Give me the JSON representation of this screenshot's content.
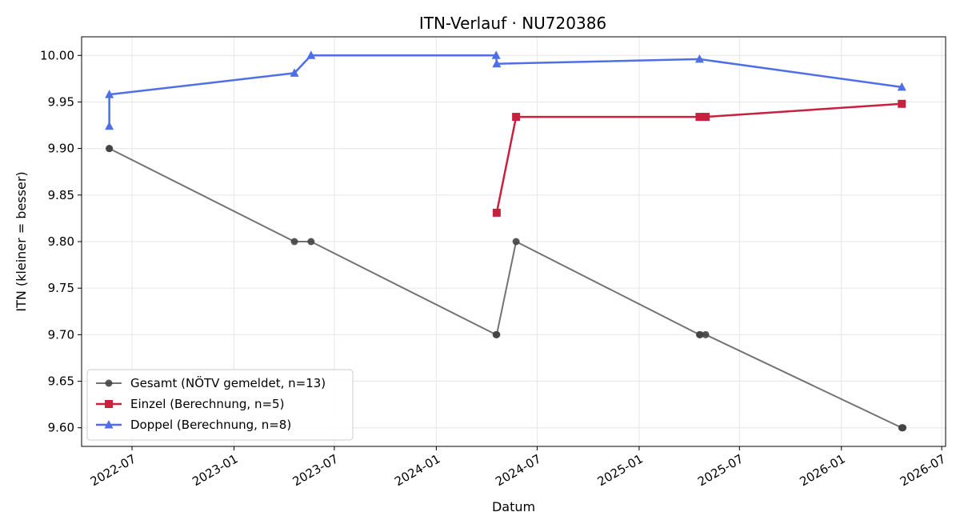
{
  "chart_data": {
    "type": "line",
    "title": "ITN-Verlauf · NU720386",
    "xlabel": "Datum",
    "ylabel": "ITN  (kleiner = besser)",
    "xlim": [
      "2022-04-01",
      "2026-07-08"
    ],
    "ylim": [
      9.58,
      10.02
    ],
    "y_ticks": [
      9.6,
      9.65,
      9.7,
      9.75,
      9.8,
      9.85,
      9.9,
      9.95,
      10.0
    ],
    "x_ticks": [
      "2022-07-01",
      "2023-01-01",
      "2023-07-01",
      "2024-01-01",
      "2024-07-01",
      "2025-01-01",
      "2025-07-01",
      "2026-01-01",
      "2026-07-01"
    ],
    "x_tick_labels": [
      "2022-07",
      "2023-01",
      "2023-07",
      "2024-01",
      "2024-07",
      "2025-01",
      "2025-07",
      "2026-01",
      "2026-07"
    ],
    "grid": true,
    "legend_position": "lower-left",
    "series": [
      {
        "name": "Gesamt (NÖTV gemeldet, n=13)",
        "color": "#444444",
        "marker": "circle",
        "points": [
          [
            "2022-05-21",
            9.9
          ],
          [
            "2022-05-21",
            9.9
          ],
          [
            "2023-04-20",
            9.8
          ],
          [
            "2023-05-20",
            9.8
          ],
          [
            "2024-04-18",
            9.7
          ],
          [
            "2024-04-19",
            9.7
          ],
          [
            "2024-05-24",
            9.8
          ],
          [
            "2025-04-20",
            9.7
          ],
          [
            "2025-04-21",
            9.7
          ],
          [
            "2025-05-01",
            9.7
          ],
          [
            "2026-04-20",
            9.6
          ],
          [
            "2026-04-21",
            9.6
          ],
          [
            "2026-04-22",
            9.6
          ]
        ]
      },
      {
        "name": "Einzel (Berechnung, n=5)",
        "color": "#c8203f",
        "marker": "square",
        "points": [
          [
            "2024-04-19",
            9.831
          ],
          [
            "2024-05-24",
            9.934
          ],
          [
            "2025-04-20",
            9.934
          ],
          [
            "2025-05-01",
            9.934
          ],
          [
            "2026-04-20",
            9.948
          ]
        ]
      },
      {
        "name": "Doppel (Berechnung, n=8)",
        "color": "#4f6fe6",
        "marker": "triangle",
        "points": [
          [
            "2022-05-21",
            9.924
          ],
          [
            "2022-05-21",
            9.958
          ],
          [
            "2023-04-20",
            9.981
          ],
          [
            "2023-05-20",
            10.0
          ],
          [
            "2024-04-18",
            10.0
          ],
          [
            "2024-04-19",
            9.991
          ],
          [
            "2025-04-20",
            9.996
          ],
          [
            "2026-04-20",
            9.966
          ]
        ]
      }
    ]
  }
}
